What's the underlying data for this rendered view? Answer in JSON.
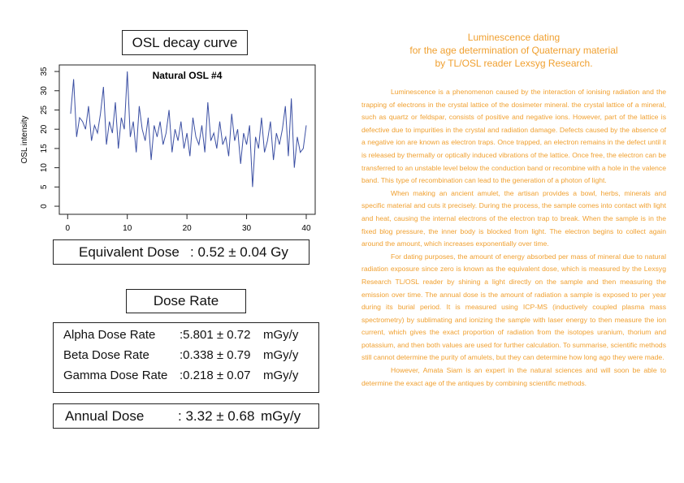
{
  "chart_data": {
    "type": "line",
    "panel_title": "OSL decay curve",
    "title": "Natural OSL #4",
    "y_label": "OSL intensity",
    "color": "#3b4fa3",
    "x": [
      0.5,
      1,
      1.5,
      2,
      2.5,
      3,
      3.5,
      4,
      4.5,
      5,
      5.5,
      6,
      6.5,
      7,
      7.5,
      8,
      8.5,
      9,
      9.5,
      10,
      10.5,
      11,
      11.5,
      12,
      12.5,
      13,
      13.5,
      14,
      14.5,
      15,
      15.5,
      16,
      16.5,
      17,
      17.5,
      18,
      18.5,
      19,
      19.5,
      20,
      20.5,
      21,
      21.5,
      22,
      22.5,
      23,
      23.5,
      24,
      24.5,
      25,
      25.5,
      26,
      26.5,
      27,
      27.5,
      28,
      28.5,
      29,
      29.5,
      30,
      30.5,
      31,
      31.5,
      32,
      32.5,
      33,
      33.5,
      34,
      34.5,
      35,
      35.5,
      36,
      36.5,
      37,
      37.5,
      38,
      38.5,
      39,
      39.5,
      40
    ],
    "values": [
      24,
      33,
      18,
      23,
      22,
      20,
      26,
      17,
      21,
      19,
      24,
      31,
      16,
      22,
      19,
      27,
      15,
      23,
      20,
      35,
      18,
      22,
      14,
      26,
      20,
      17,
      23,
      12,
      21,
      18,
      22,
      16,
      19,
      25,
      14,
      20,
      17,
      22,
      15,
      19,
      13,
      23,
      18,
      16,
      21,
      14,
      27,
      17,
      19,
      15,
      22,
      16,
      18,
      13,
      24,
      17,
      20,
      11,
      19,
      16,
      21,
      5,
      18,
      15,
      23,
      14,
      17,
      22,
      12,
      19,
      16,
      20,
      26,
      13,
      28,
      10,
      18,
      14,
      15,
      21
    ],
    "xlim": [
      -1.4,
      41.5
    ],
    "ylim": [
      -2.1,
      36.7
    ],
    "xticks": [
      0,
      10,
      20,
      30,
      40
    ],
    "yticks": [
      0,
      5,
      10,
      15,
      20,
      25,
      30,
      35
    ]
  },
  "equivalent_dose": {
    "label": "Equivalent Dose",
    "value": ": 0.52 ± 0.04 Gy"
  },
  "dose_rate": {
    "title": "Dose Rate",
    "rows": [
      {
        "label": "Alpha Dose Rate",
        "value": ":5.801 ± 0.72",
        "unit": "mGy/y"
      },
      {
        "label": "Beta Dose Rate",
        "value": ":0.338 ± 0.79",
        "unit": "mGy/y"
      },
      {
        "label": "Gamma Dose Rate",
        "value": ":0.218 ± 0.07",
        "unit": "mGy/y"
      }
    ]
  },
  "annual_dose": {
    "label": "Annual Dose",
    "value": ": 3.32 ± 0.68",
    "unit": "mGy/y"
  },
  "article": {
    "heading": [
      "Luminescence dating",
      "for the age determination of Quaternary material",
      "by TL/OSL reader Lexsyg Research."
    ],
    "paragraphs": [
      "Luminescence is a phenomenon caused by the interaction of ionising radiation and the trapping of electrons in the crystal lattice of the dosimeter mineral. the crystal lattice of a mineral, such as quartz or feldspar, consists of positive and negative ions. However, part of the lattice is defective due to impurities in the crystal and radiation damage. Defects caused by the absence of a negative ion are known as electron traps. Once trapped, an electron remains in the defect until it is released by thermally or optically induced vibrations of the lattice. Once free, the electron can be transferred to an unstable level below the conduction band or recombine with a hole in the valence band. This type of recombination can lead to the generation of a photon of light.",
      "When making an ancient amulet, the artisan provides a bowl, herbs, minerals and specific material and cuts it precisely. During the process, the sample comes into contact with light and heat, causing the internal electrons of the electron trap to break. When the sample is in the fixed blog pressure, the inner body is blocked from light. The electron begins to collect again around the amount, which increases exponentially over time.",
      "For dating purposes, the amount of energy absorbed per mass of mineral due to natural radiation exposure since zero is known as the equivalent dose, which is measured by the Lexsyg Research TL/OSL reader by shining a light directly on the sample and then measuring the emission over time. The annual dose is the amount of radiation a sample is exposed to per year during its burial period. It is measured using ICP-MS (inductively coupled plasma mass spectrometry) by sublimating and ionizing the sample with laser energy to then measure the ion current, which gives the exact proportion of radiation from the isotopes uranium, thorium and potassium, and then both values are used for further calculation. To summarise, scientific methods still cannot determine the purity of amulets, but they can determine how long ago they were made.",
      "However, Amata Siam is an expert in the natural sciences and will soon be able to determine the exact age of the antiques by combining scientific methods."
    ]
  }
}
